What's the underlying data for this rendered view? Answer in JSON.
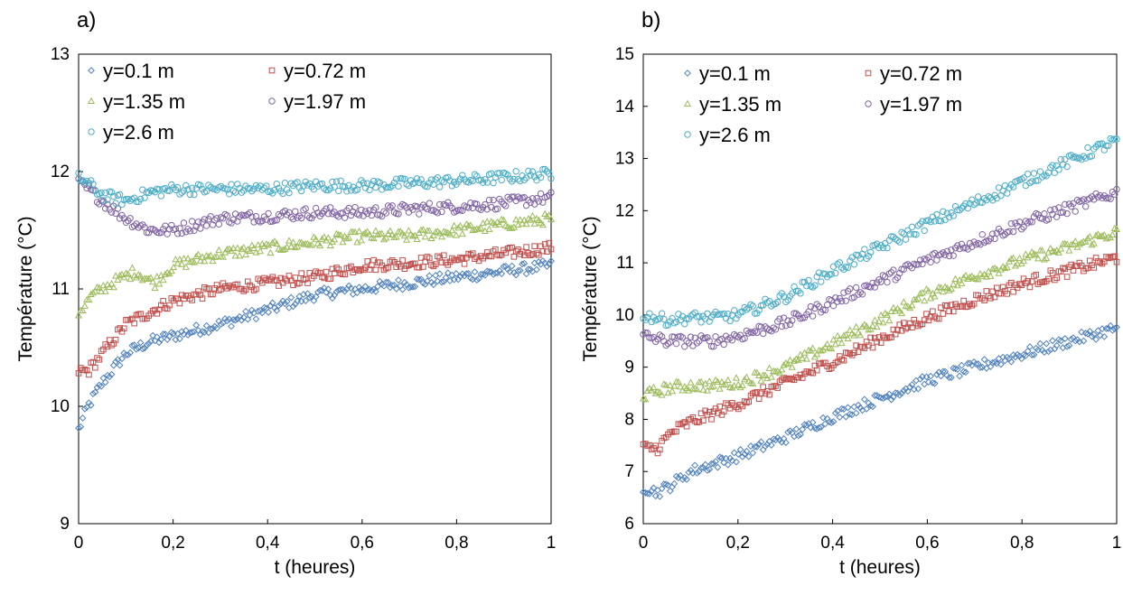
{
  "chart_data": [
    {
      "panel_label": "a)",
      "type": "scatter",
      "xlabel": "t (heures)",
      "ylabel": "Température (°C)",
      "xlim": [
        0,
        1
      ],
      "ylim": [
        9,
        13
      ],
      "xticks": [
        "0",
        "0,2",
        "0,4",
        "0,6",
        "0,8",
        "1"
      ],
      "yticks": [
        "9",
        "10",
        "11",
        "12",
        "13"
      ],
      "grid": false,
      "legend_position": "top-left",
      "series": [
        {
          "name": "y=0.1 m",
          "color": "#4f81bd",
          "marker": "diamond",
          "x": [
            0,
            0.02,
            0.05,
            0.1,
            0.15,
            0.2,
            0.3,
            0.4,
            0.5,
            0.6,
            0.7,
            0.8,
            0.9,
            1.0
          ],
          "y": [
            9.8,
            10.0,
            10.2,
            10.45,
            10.55,
            10.6,
            10.7,
            10.82,
            10.95,
            11.0,
            11.05,
            11.1,
            11.15,
            11.2
          ]
        },
        {
          "name": "y=0.72 m",
          "color": "#c0504d",
          "marker": "square",
          "x": [
            0,
            0.02,
            0.05,
            0.1,
            0.15,
            0.2,
            0.3,
            0.4,
            0.5,
            0.6,
            0.7,
            0.8,
            0.9,
            1.0
          ],
          "y": [
            10.3,
            10.3,
            10.45,
            10.7,
            10.8,
            10.9,
            11.0,
            11.05,
            11.1,
            11.2,
            11.22,
            11.25,
            11.3,
            11.35
          ]
        },
        {
          "name": "y=1.35 m",
          "color": "#9bbb59",
          "marker": "triangle",
          "x": [
            0,
            0.03,
            0.07,
            0.12,
            0.16,
            0.2,
            0.3,
            0.4,
            0.5,
            0.6,
            0.7,
            0.8,
            0.9,
            1.0
          ],
          "y": [
            10.8,
            10.95,
            11.05,
            11.15,
            11.05,
            11.2,
            11.3,
            11.35,
            11.4,
            11.45,
            11.45,
            11.5,
            11.55,
            11.6
          ]
        },
        {
          "name": "y=1.97 m",
          "color": "#8064a2",
          "marker": "circle",
          "x": [
            0,
            0.02,
            0.05,
            0.1,
            0.15,
            0.2,
            0.3,
            0.4,
            0.5,
            0.6,
            0.7,
            0.8,
            0.9,
            1.0
          ],
          "y": [
            11.9,
            11.85,
            11.75,
            11.6,
            11.5,
            11.5,
            11.6,
            11.62,
            11.65,
            11.65,
            11.68,
            11.7,
            11.73,
            11.78
          ]
        },
        {
          "name": "y=2.6 m",
          "color": "#4bacc6",
          "marker": "circle",
          "x": [
            0,
            0.02,
            0.05,
            0.1,
            0.15,
            0.2,
            0.3,
            0.4,
            0.5,
            0.6,
            0.7,
            0.8,
            0.9,
            1.0
          ],
          "y": [
            11.95,
            11.9,
            11.8,
            11.75,
            11.82,
            11.85,
            11.85,
            11.85,
            11.88,
            11.88,
            11.9,
            11.92,
            11.95,
            11.98
          ]
        }
      ]
    },
    {
      "panel_label": "b)",
      "type": "scatter",
      "xlabel": "t (heures)",
      "ylabel": "Température (°C)",
      "xlim": [
        0,
        1
      ],
      "ylim": [
        6,
        15
      ],
      "xticks": [
        "0",
        "0,2",
        "0,4",
        "0,6",
        "0,8",
        "1"
      ],
      "yticks": [
        "6",
        "7",
        "8",
        "9",
        "10",
        "11",
        "12",
        "13",
        "14",
        "15"
      ],
      "grid": false,
      "legend_position": "top-left",
      "series": [
        {
          "name": "y=0.1 m",
          "color": "#4f81bd",
          "marker": "diamond",
          "x": [
            0,
            0.03,
            0.06,
            0.1,
            0.2,
            0.3,
            0.4,
            0.5,
            0.6,
            0.7,
            0.8,
            0.9,
            1.0
          ],
          "y": [
            6.7,
            6.6,
            6.75,
            7.0,
            7.3,
            7.65,
            8.05,
            8.4,
            8.75,
            9.0,
            9.25,
            9.5,
            9.75
          ]
        },
        {
          "name": "y=0.72 m",
          "color": "#c0504d",
          "marker": "square",
          "x": [
            0,
            0.03,
            0.06,
            0.1,
            0.2,
            0.3,
            0.4,
            0.5,
            0.6,
            0.7,
            0.8,
            0.9,
            1.0
          ],
          "y": [
            7.45,
            7.45,
            7.75,
            7.95,
            8.3,
            8.7,
            9.1,
            9.55,
            9.95,
            10.3,
            10.6,
            10.85,
            11.1
          ]
        },
        {
          "name": "y=1.35 m",
          "color": "#9bbb59",
          "marker": "triangle",
          "x": [
            0,
            0.05,
            0.1,
            0.15,
            0.2,
            0.3,
            0.4,
            0.5,
            0.6,
            0.7,
            0.8,
            0.9,
            1.0
          ],
          "y": [
            8.45,
            8.6,
            8.65,
            8.65,
            8.7,
            9.0,
            9.45,
            9.9,
            10.4,
            10.75,
            11.05,
            11.3,
            11.6
          ]
        },
        {
          "name": "y=1.97 m",
          "color": "#8064a2",
          "marker": "circle",
          "x": [
            0,
            0.05,
            0.1,
            0.15,
            0.2,
            0.3,
            0.4,
            0.5,
            0.6,
            0.7,
            0.8,
            0.9,
            1.0
          ],
          "y": [
            9.6,
            9.5,
            9.5,
            9.5,
            9.6,
            9.85,
            10.25,
            10.65,
            11.05,
            11.4,
            11.75,
            12.05,
            12.35
          ]
        },
        {
          "name": "y=2.6 m",
          "color": "#4bacc6",
          "marker": "circle",
          "x": [
            0,
            0.05,
            0.1,
            0.15,
            0.2,
            0.3,
            0.4,
            0.5,
            0.6,
            0.7,
            0.8,
            0.9,
            1.0
          ],
          "y": [
            10.0,
            9.9,
            9.95,
            9.95,
            10.0,
            10.35,
            10.85,
            11.3,
            11.75,
            12.15,
            12.55,
            12.95,
            13.35
          ]
        }
      ]
    }
  ]
}
